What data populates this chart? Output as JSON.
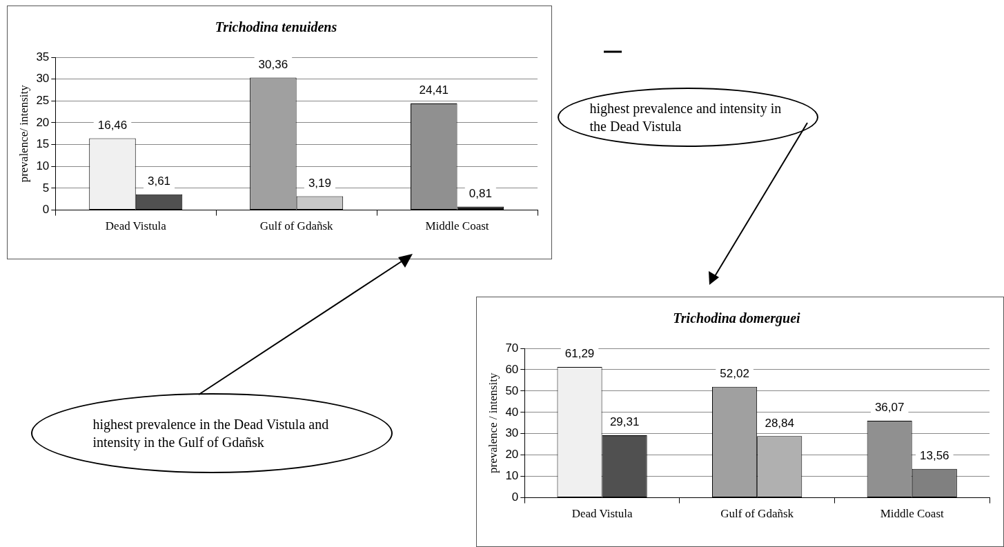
{
  "chart_data": [
    {
      "type": "bar",
      "title": "Trichodina tenuidens",
      "ylabel": "prevalence/ intensity",
      "categories": [
        "Dead Vistula",
        "Gulf of Gdañsk",
        "Middle Coast"
      ],
      "series": [
        {
          "colors": [
            "#f0f0f0",
            "#a0a0a0",
            "#909090"
          ],
          "values": [
            16.46,
            30.36,
            24.41
          ],
          "value_labels": [
            "16,46",
            "30,36",
            "24,41"
          ]
        },
        {
          "colors": [
            "#505050",
            "#c8c8c8",
            "#202020"
          ],
          "values": [
            3.61,
            3.19,
            0.81
          ],
          "value_labels": [
            "3,61",
            "3,19",
            "0,81"
          ]
        }
      ],
      "ylim": [
        0,
        35
      ],
      "yticks": [
        0,
        5,
        10,
        15,
        20,
        25,
        30,
        35
      ],
      "grid": "y",
      "annotations": [
        "highest prevalence in the Dead Vistula and intensity in the Gulf of Gdañsk"
      ]
    },
    {
      "type": "bar",
      "title": "Trichodina domerguei",
      "ylabel": "prevalence / intensity",
      "categories": [
        "Dead Vistula",
        "Gulf of Gdañsk",
        "Middle Coast"
      ],
      "series": [
        {
          "colors": [
            "#f0f0f0",
            "#a0a0a0",
            "#909090"
          ],
          "values": [
            61.29,
            52.02,
            36.07
          ],
          "value_labels": [
            "61,29",
            "52,02",
            "36,07"
          ]
        },
        {
          "colors": [
            "#505050",
            "#b0b0b0",
            "#808080"
          ],
          "values": [
            29.31,
            28.84,
            13.56
          ],
          "value_labels": [
            "29,31",
            "28,84",
            "13,56"
          ]
        }
      ],
      "ylim": [
        0,
        70
      ],
      "yticks": [
        0,
        10,
        20,
        30,
        40,
        50,
        60,
        70
      ],
      "grid": "y",
      "annotations": [
        "highest prevalence and intensity in the Dead Vistula"
      ]
    }
  ]
}
